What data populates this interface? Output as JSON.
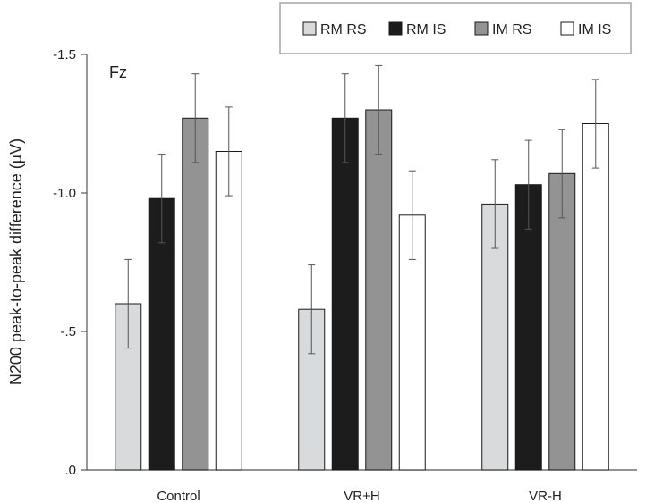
{
  "chart_data": {
    "type": "bar",
    "ylabel": "N200 peak-to-peak difference (µV)",
    "xlabel": "",
    "annotation": "Fz",
    "categories": [
      "Control",
      "VR+H",
      "VR-H"
    ],
    "ylim": [
      0,
      -1.5
    ],
    "yticks": [
      0,
      -0.5,
      -1.0,
      -1.5
    ],
    "ytick_labels": [
      ".0",
      "-.5",
      "-1.0",
      "-1.5"
    ],
    "legend_position": "top-right",
    "series": [
      {
        "name": "RM RS",
        "color": "#d9dadc",
        "values": [
          -0.6,
          -0.58,
          -0.96
        ],
        "errors": [
          0.16,
          0.16,
          0.16
        ]
      },
      {
        "name": "RM IS",
        "color": "#1c1c1c",
        "values": [
          -0.98,
          -1.27,
          -1.03
        ],
        "errors": [
          0.16,
          0.16,
          0.16
        ]
      },
      {
        "name": "IM RS",
        "color": "#939393",
        "values": [
          -1.27,
          -1.3,
          -1.07
        ],
        "errors": [
          0.16,
          0.16,
          0.16
        ]
      },
      {
        "name": "IM IS",
        "color": "#ffffff",
        "values": [
          -1.15,
          -0.92,
          -1.25
        ],
        "errors": [
          0.16,
          0.16,
          0.16
        ]
      }
    ],
    "grid": false
  }
}
